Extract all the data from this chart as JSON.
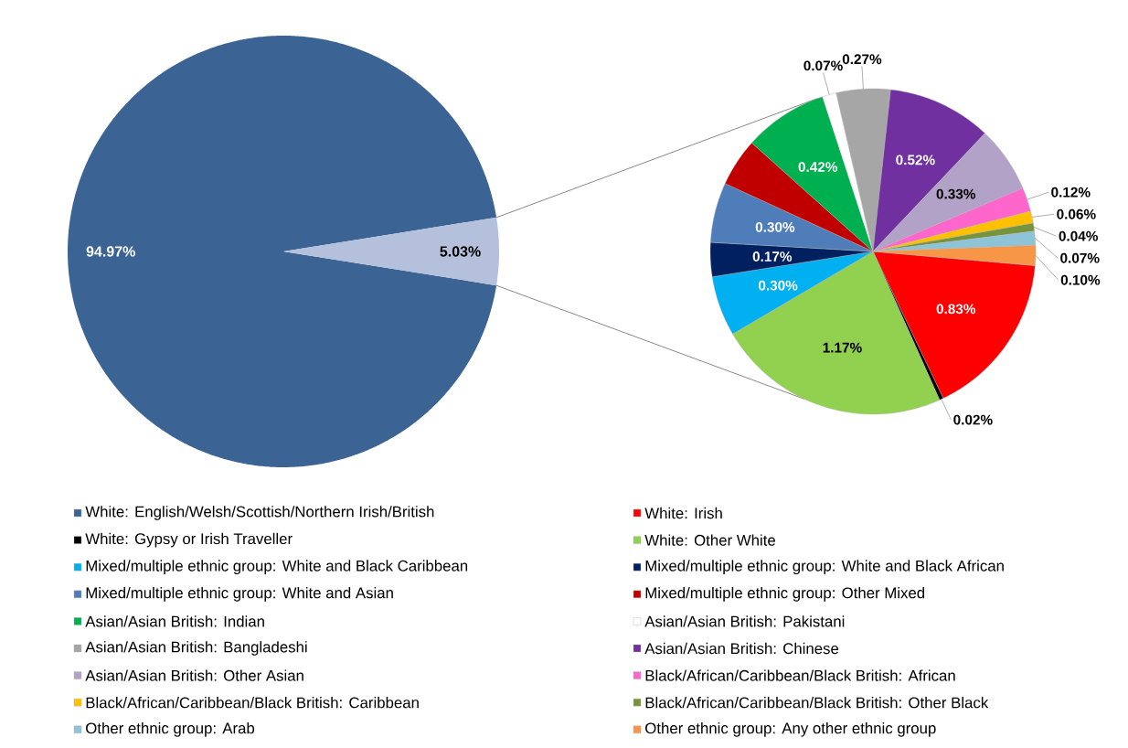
{
  "chart_data": [
    {
      "type": "pie",
      "categories": [
        "White: English/Welsh/Scottish/Northern Irish/British",
        null
      ],
      "values": [
        94.97,
        5.03
      ],
      "colors": [
        "#3b6494",
        "#b4c0dc"
      ],
      "value_labels": [
        "94.97%",
        "5.03%"
      ],
      "legend": "bottom"
    },
    {
      "type": "pie",
      "categories": [
        "White: Irish",
        "White: Gypsy or Irish Traveller",
        "White: Other White",
        "Mixed/multiple ethnic group: White and Black Caribbean",
        "Mixed/multiple ethnic group: White and Black African",
        "Mixed/multiple ethnic group: White and Asian",
        "Mixed/multiple ethnic group: Other Mixed",
        "Asian/Asian British: Indian",
        "Asian/Asian British: Pakistani",
        "Asian/Asian British: Bangladeshi",
        "Asian/Asian British: Chinese",
        "Asian/Asian British: Other Asian",
        "Black/African/Caribbean/Black British: African",
        "Black/African/Caribbean/Black British: Caribbean",
        "Black/African/Caribbean/Black British: Other Black",
        "Other ethnic group: Arab",
        "Other ethnic group: Any other ethnic group"
      ],
      "values": [
        0.83,
        0.02,
        1.17,
        0.3,
        0.17,
        0.3,
        0.24,
        0.42,
        0.07,
        0.27,
        0.52,
        0.33,
        0.12,
        0.06,
        0.04,
        0.07,
        0.1
      ],
      "colors": [
        "#ff0000",
        "#000000",
        "#92d050",
        "#00b0f0",
        "#002060",
        "#4f7dba",
        "#c00000",
        "#00b050",
        "#ffffff",
        "#a6a6a6",
        "#7030a0",
        "#b3a2c7",
        "#ff66cc",
        "#ffc000",
        "#77933c",
        "#8fc3d8",
        "#f79646"
      ],
      "value_labels": [
        "0.83%",
        "0.02%",
        "1.17%",
        "0.30%",
        "0.17%",
        "0.30%",
        null,
        "0.42%",
        "0.07%",
        "0.27%",
        "0.52%",
        "0.33%",
        "0.12%",
        "0.06%",
        "0.04%",
        "0.07%",
        "0.10%"
      ],
      "legend": "bottom"
    }
  ]
}
